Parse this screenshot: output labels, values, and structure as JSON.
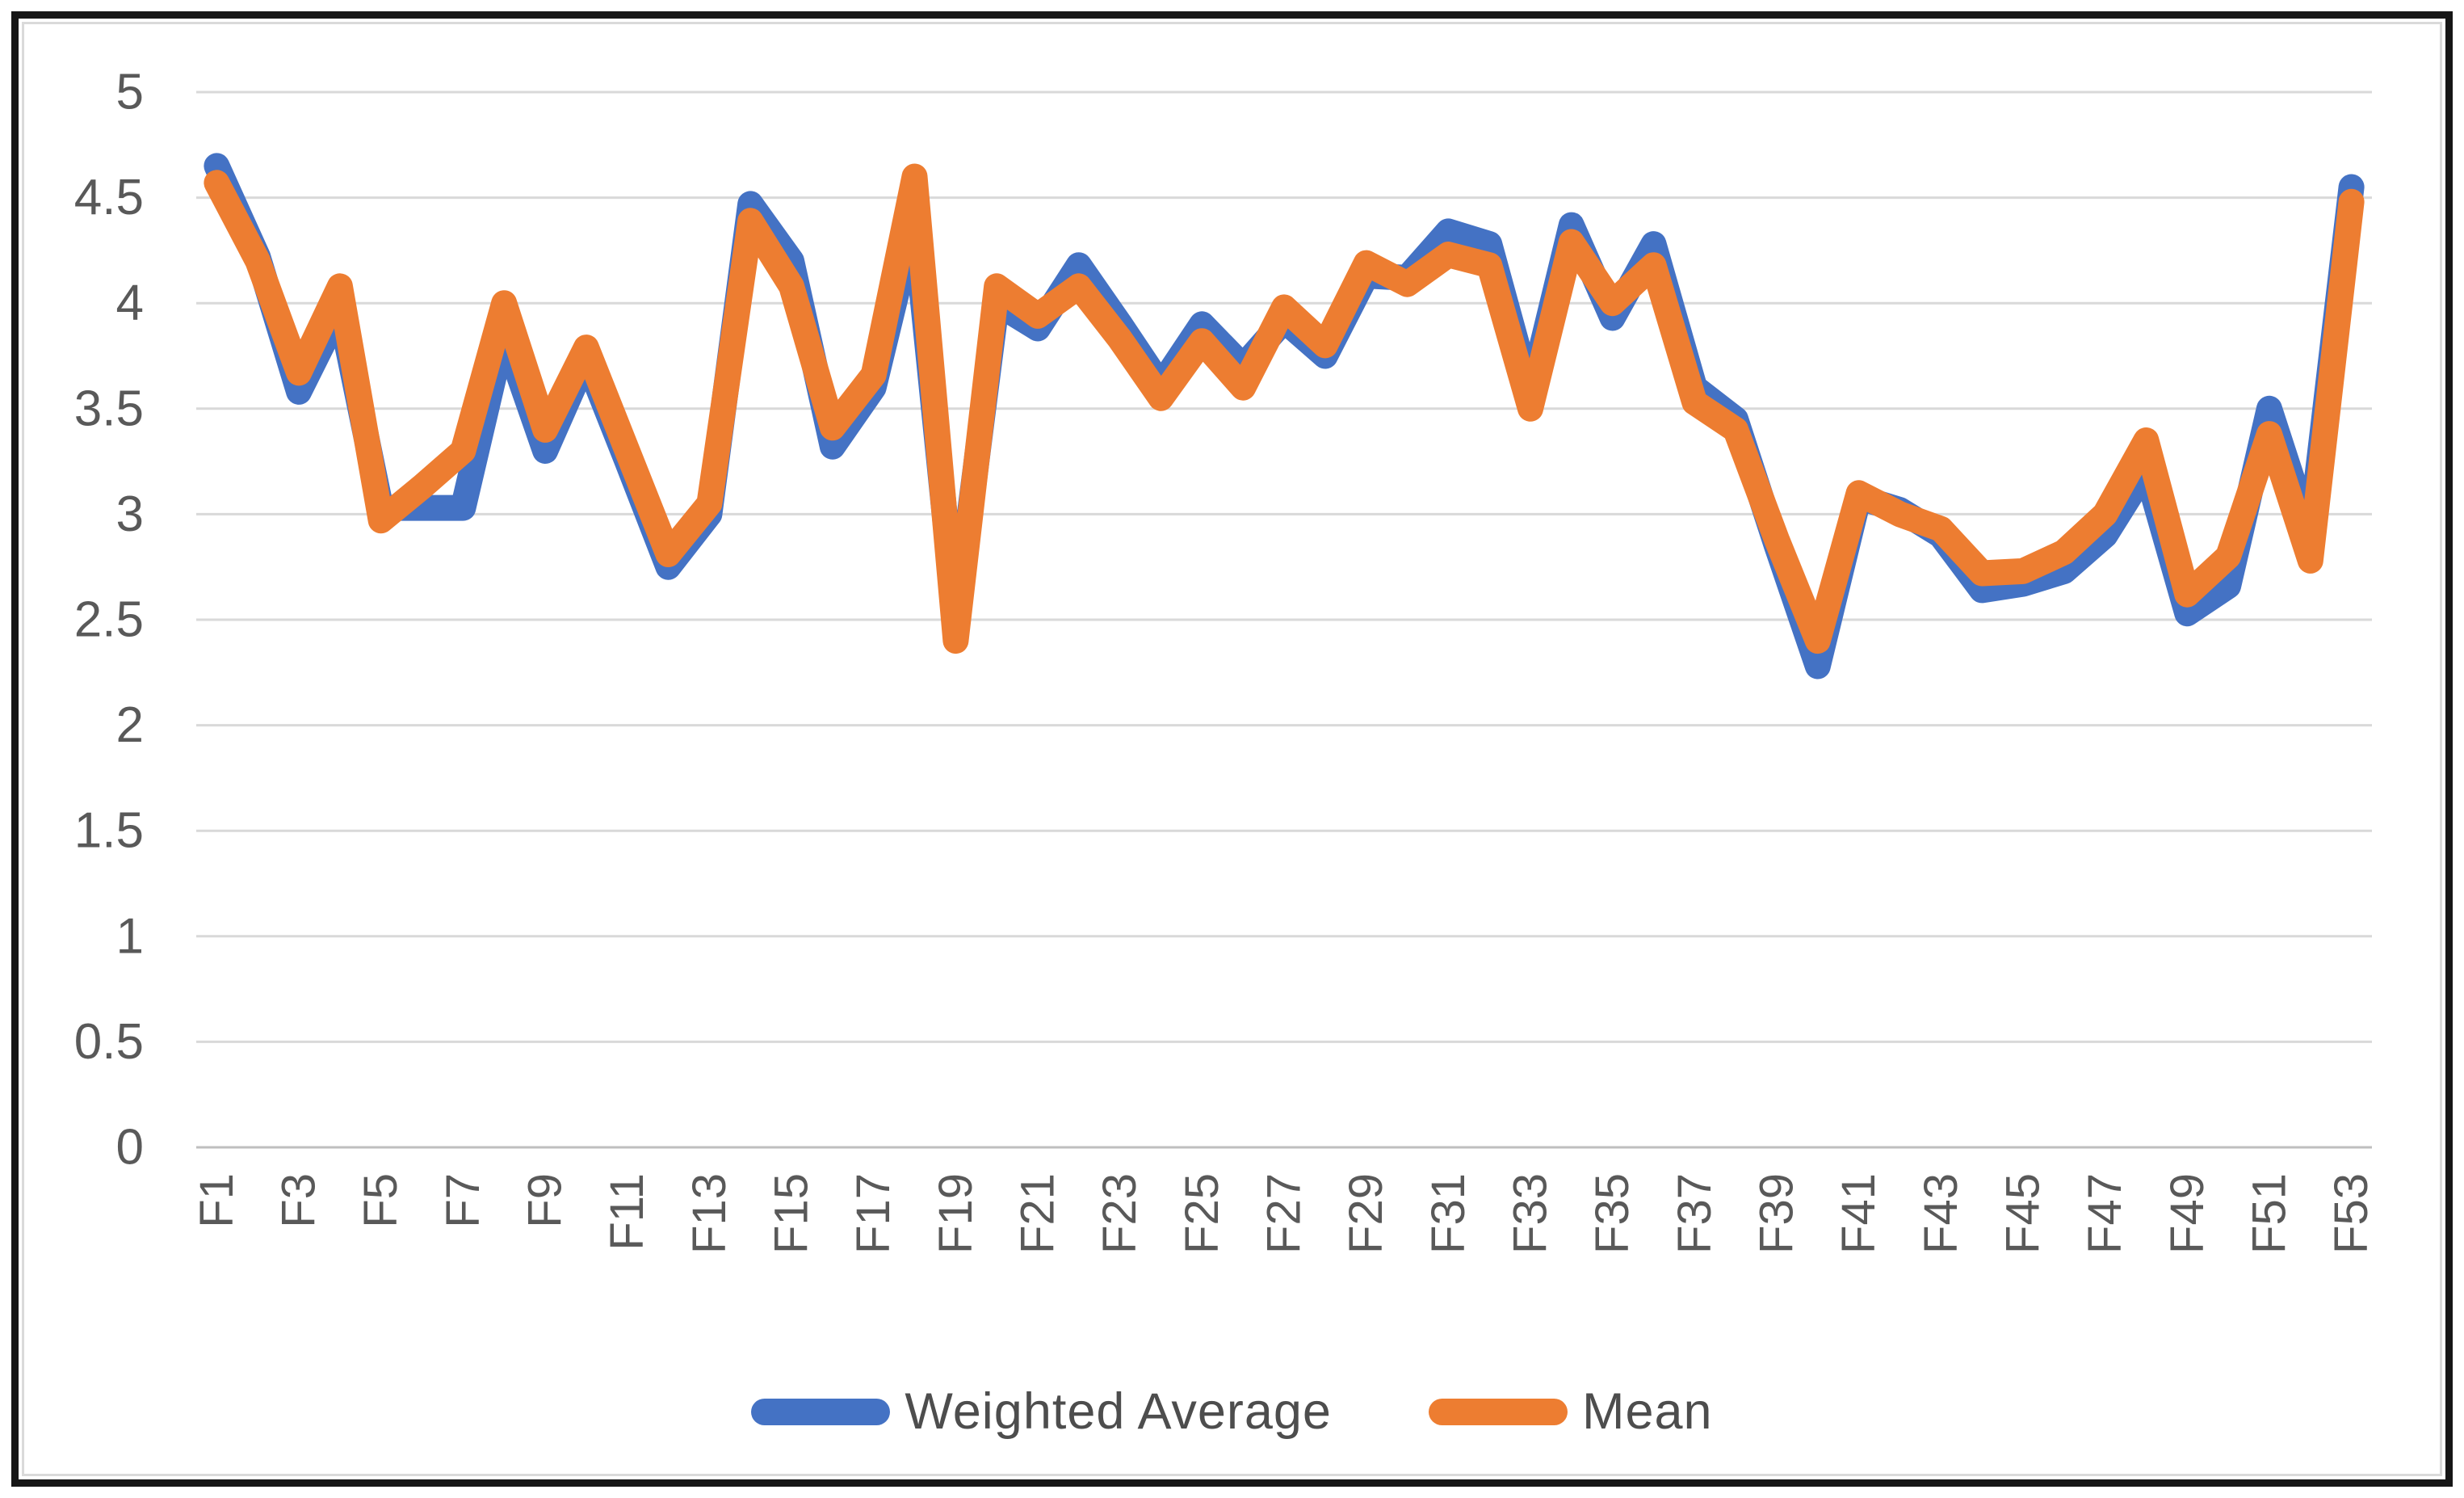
{
  "chart_data": {
    "type": "line",
    "title": "",
    "xlabel": "",
    "ylabel": "",
    "ylim": [
      0,
      5
    ],
    "ytick_step": 0.5,
    "ytick_labels": [
      "5",
      "4.5",
      "4",
      "3.5",
      "3",
      "2.5",
      "2",
      "1.5",
      "1",
      "0.5",
      "0"
    ],
    "grid": true,
    "legend_position": "bottom",
    "categories": [
      "F1",
      "F2",
      "F3",
      "F4",
      "F5",
      "F6",
      "F7",
      "F8",
      "F9",
      "F10",
      "F11",
      "F12",
      "F13",
      "F14",
      "F15",
      "F16",
      "F17",
      "F18",
      "F19",
      "F20",
      "F21",
      "F22",
      "F23",
      "F24",
      "F25",
      "F26",
      "F27",
      "F28",
      "F29",
      "F30",
      "F31",
      "F32",
      "F33",
      "F34",
      "F35",
      "F36",
      "F37",
      "F38",
      "F39",
      "F40",
      "F41",
      "F42",
      "F43",
      "F44",
      "F45",
      "F46",
      "F47",
      "F48",
      "F49",
      "F50",
      "F51",
      "F52",
      "F53"
    ],
    "x_tick_labels_shown": [
      "F1",
      "F3",
      "F5",
      "F7",
      "F9",
      "F11",
      "F13",
      "F15",
      "F17",
      "F19",
      "F21",
      "F23",
      "F25",
      "F27",
      "F29",
      "F31",
      "F33",
      "F35",
      "F37",
      "F39",
      "F41",
      "F43",
      "F45",
      "F47",
      "F49",
      "F51",
      "F53"
    ],
    "series": [
      {
        "name": "Weighted Average",
        "color": "#4472C4",
        "values": [
          4.65,
          4.22,
          3.58,
          3.97,
          3.03,
          3.03,
          3.03,
          3.86,
          3.3,
          3.74,
          3.25,
          2.75,
          3.0,
          4.47,
          4.2,
          3.32,
          3.6,
          4.4,
          2.48,
          4.0,
          3.88,
          4.18,
          3.9,
          3.61,
          3.9,
          3.7,
          3.92,
          3.75,
          4.13,
          4.12,
          4.34,
          4.28,
          3.57,
          4.37,
          3.93,
          4.28,
          3.6,
          3.45,
          2.85,
          2.28,
          3.08,
          3.02,
          2.9,
          2.64,
          2.67,
          2.73,
          2.9,
          3.21,
          2.53,
          2.66,
          3.5,
          2.9,
          4.55
        ]
      },
      {
        "name": "Mean",
        "color": "#ED7D31",
        "values": [
          4.57,
          4.2,
          3.67,
          4.08,
          2.97,
          3.13,
          3.3,
          4.0,
          3.4,
          3.79,
          3.3,
          2.81,
          3.05,
          4.39,
          4.08,
          3.41,
          3.66,
          4.6,
          2.4,
          4.08,
          3.94,
          4.08,
          3.83,
          3.55,
          3.82,
          3.6,
          3.98,
          3.8,
          4.19,
          4.09,
          4.23,
          4.18,
          3.5,
          4.29,
          4.0,
          4.18,
          3.53,
          3.4,
          2.88,
          2.4,
          3.1,
          3.0,
          2.93,
          2.72,
          2.73,
          2.82,
          3.0,
          3.35,
          2.62,
          2.8,
          3.38,
          2.78,
          4.48
        ]
      }
    ]
  },
  "legend": {
    "items": [
      {
        "label": "Weighted Average",
        "color": "#4472C4"
      },
      {
        "label": "Mean",
        "color": "#ED7D31"
      }
    ]
  },
  "style": {
    "gridline_color": "#d9d9d9",
    "axis_line_color": "#bfbfbf",
    "tick_label_color": "#595959",
    "frame_color": "#161616",
    "line_width": 32
  }
}
